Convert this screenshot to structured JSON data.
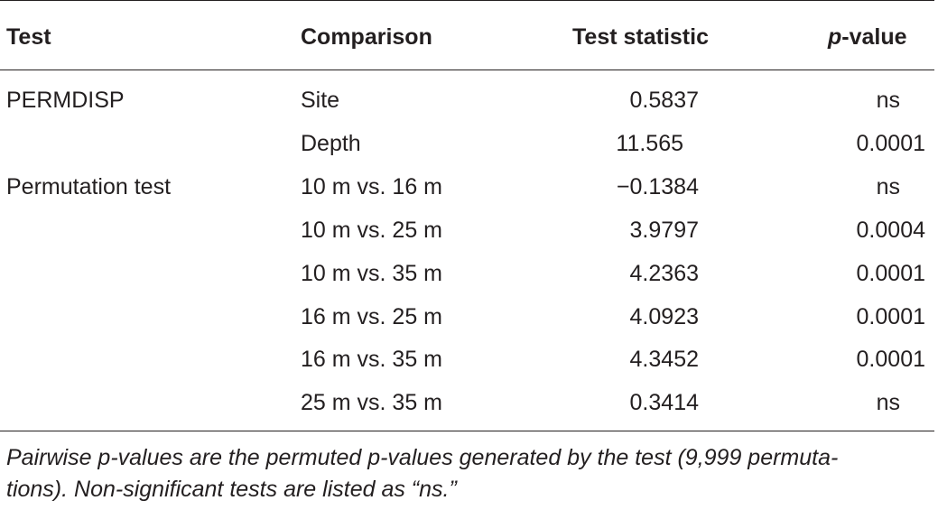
{
  "table": {
    "headers": {
      "test": "Test",
      "comparison": "Comparison",
      "statistic": "Test statistic",
      "p_italic": "p",
      "p_rest": "-value"
    },
    "rows": [
      {
        "test": "PERMDISP",
        "comparison": "Site",
        "statistic": "0.5837",
        "pvalue": "ns"
      },
      {
        "test": "",
        "comparison": "Depth",
        "statistic": "11.565",
        "pvalue": "0.0001"
      },
      {
        "test": "Permutation test",
        "comparison": "10 m vs. 16 m",
        "statistic": "−0.1384",
        "pvalue": "ns"
      },
      {
        "test": "",
        "comparison": "10 m vs. 25 m",
        "statistic": "3.9797",
        "pvalue": "0.0004"
      },
      {
        "test": "",
        "comparison": "10 m vs. 35 m",
        "statistic": "4.2363",
        "pvalue": "0.0001"
      },
      {
        "test": "",
        "comparison": "16 m vs. 25 m",
        "statistic": "4.0923",
        "pvalue": "0.0001"
      },
      {
        "test": "",
        "comparison": "16 m vs. 35 m",
        "statistic": "4.3452",
        "pvalue": "0.0001"
      },
      {
        "test": "",
        "comparison": "25 m vs. 35 m",
        "statistic": "0.3414",
        "pvalue": "ns"
      }
    ],
    "footnote_line1": "Pairwise p-values are the permuted p-values generated by the test (9,999 permuta-",
    "footnote_line2": "tions). Non-significant tests are listed as “ns.”"
  }
}
